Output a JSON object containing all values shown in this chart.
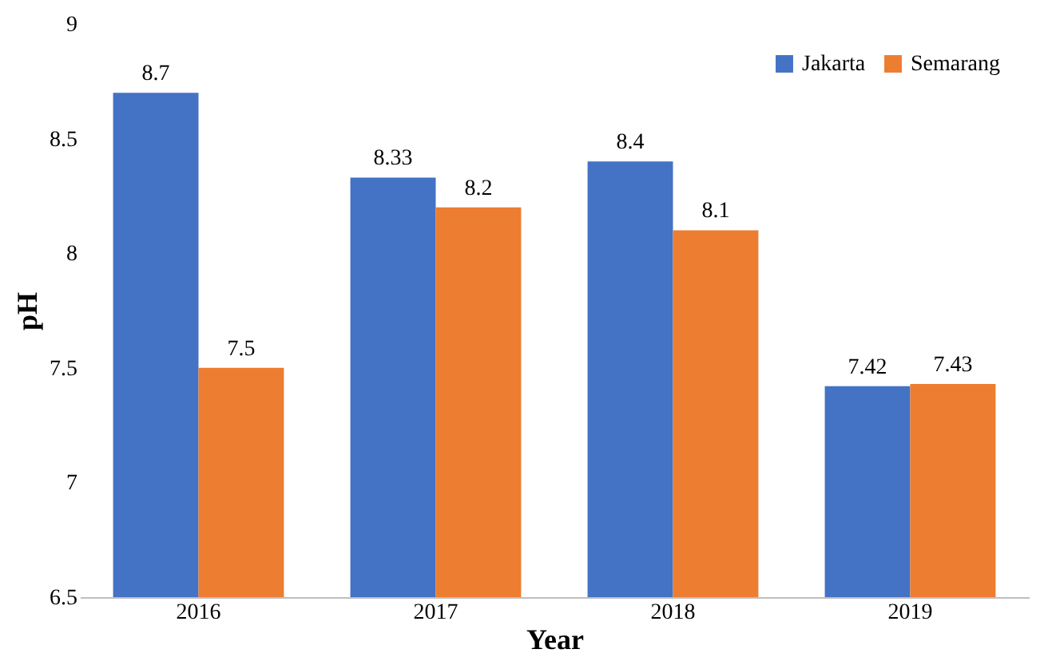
{
  "chart_data": {
    "type": "bar",
    "xlabel": "Year",
    "ylabel": "pH",
    "categories": [
      "2016",
      "2017",
      "2018",
      "2019"
    ],
    "series": [
      {
        "name": "Jakarta",
        "color": "#4472c4",
        "values": [
          8.7,
          8.33,
          8.4,
          7.42
        ]
      },
      {
        "name": "Semarang",
        "color": "#ed7d31",
        "values": [
          7.5,
          8.2,
          8.1,
          7.43
        ]
      }
    ],
    "ylim": [
      6.5,
      9
    ],
    "yticks": [
      6.5,
      7,
      7.5,
      8,
      8.5,
      9
    ],
    "grid": false,
    "legend": "top right",
    "data_labels": true
  }
}
